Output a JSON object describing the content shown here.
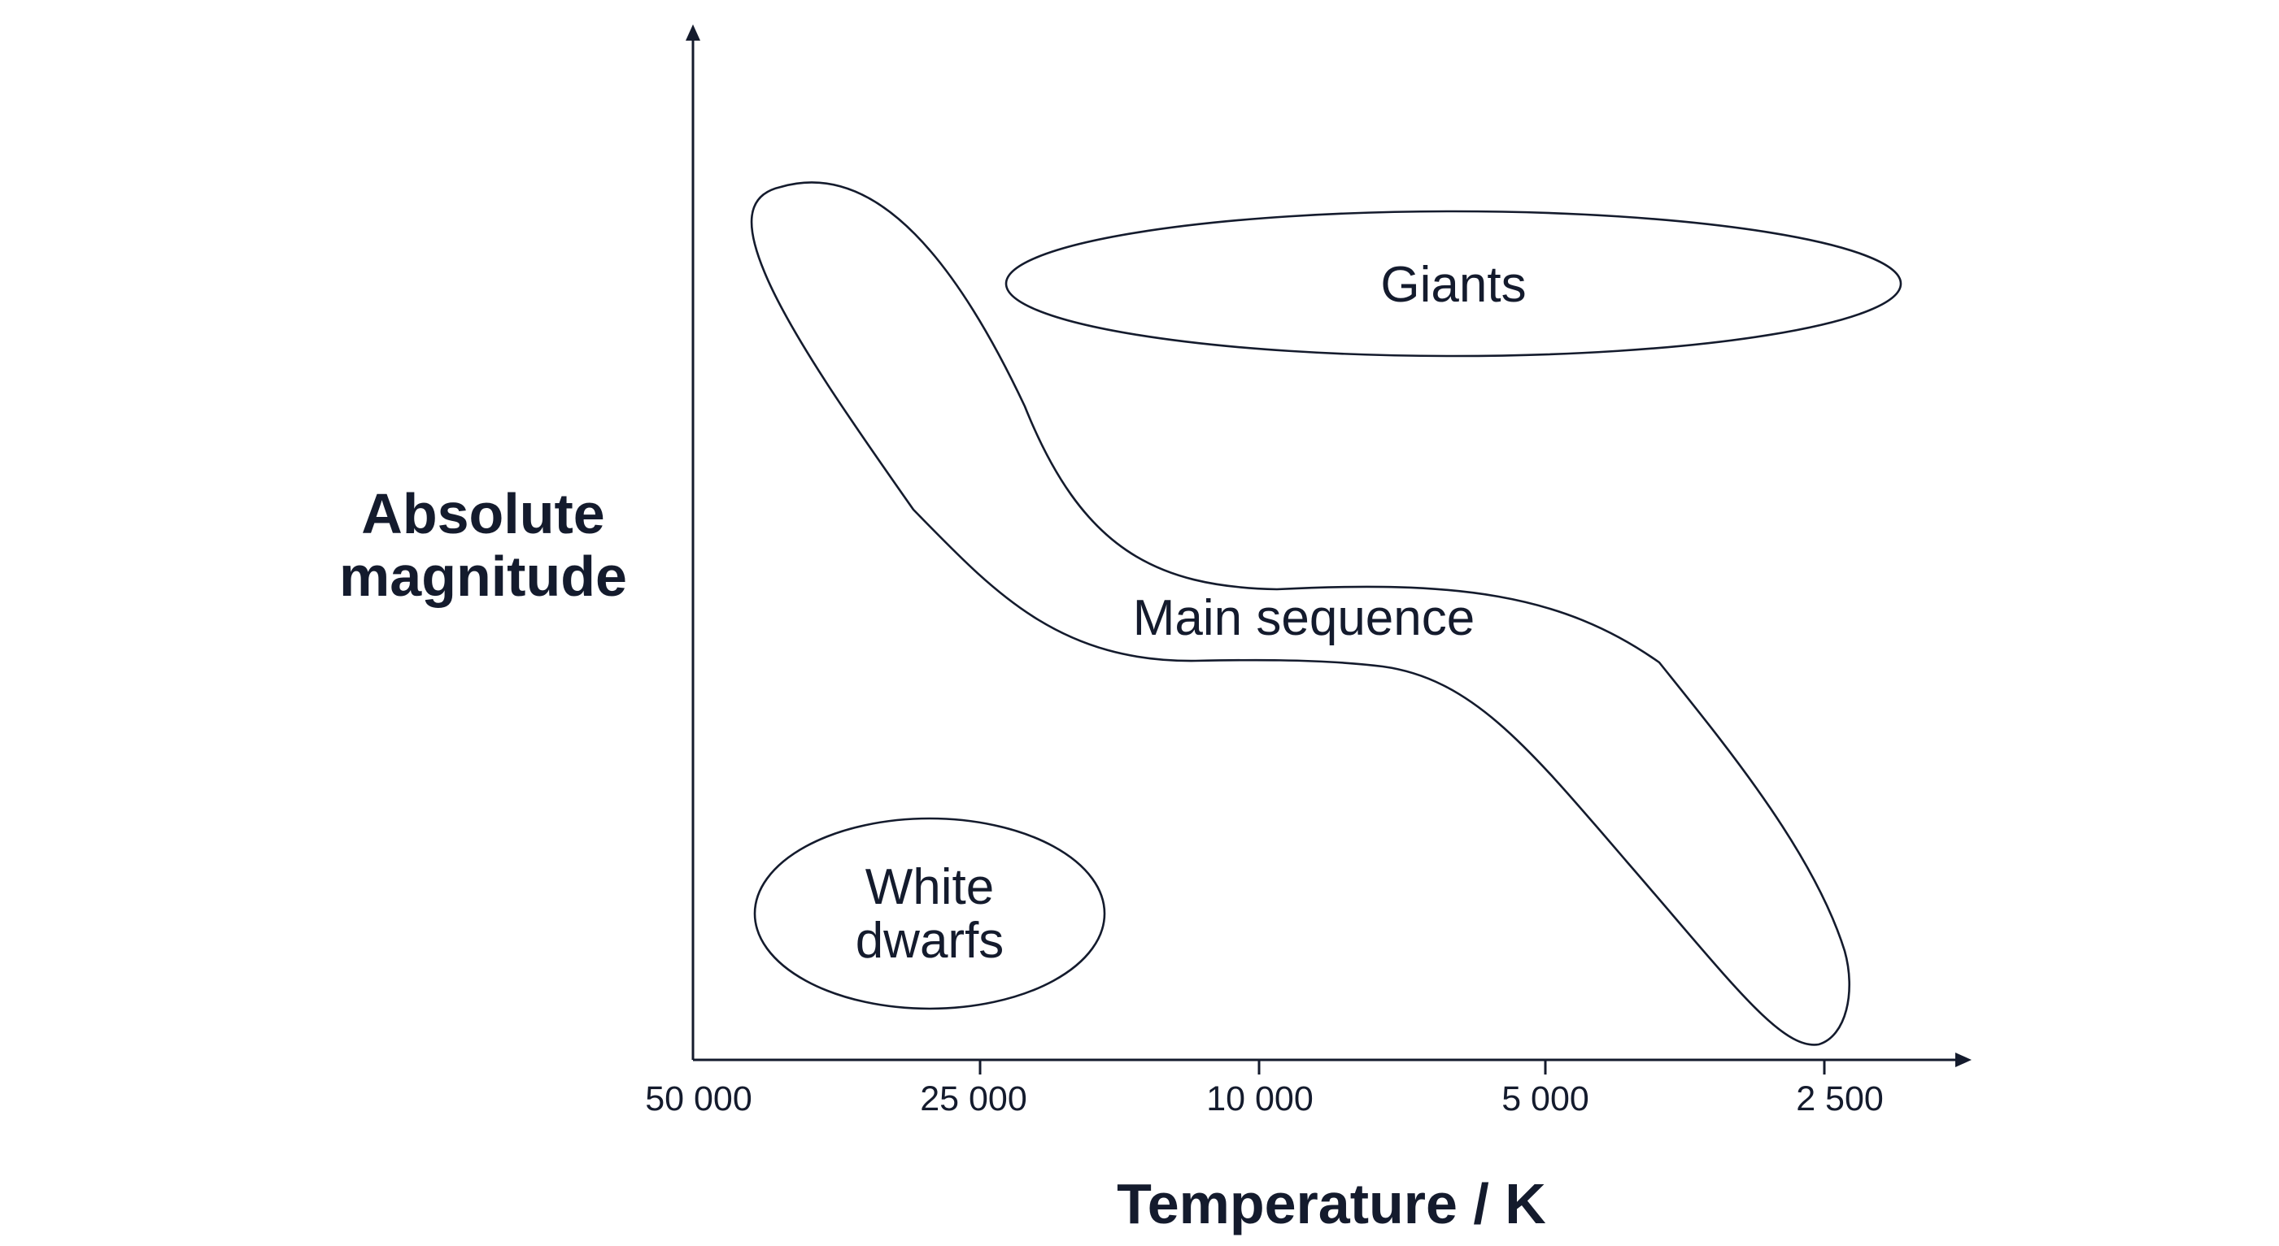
{
  "axes": {
    "x_title": "Temperature / K",
    "y_title_lines": [
      "Absolute",
      "magnitude"
    ],
    "x_ticks": [
      "50 000",
      "25 000",
      "10 000",
      "5 000",
      "2 500"
    ]
  },
  "regions": {
    "giants": {
      "label": "Giants"
    },
    "main_sequence": {
      "label": "Main sequence"
    },
    "white_dwarfs": {
      "label_lines": [
        "White",
        "dwarfs"
      ]
    }
  },
  "colors": {
    "ink": "#141b2d",
    "background": "#ffffff"
  }
}
